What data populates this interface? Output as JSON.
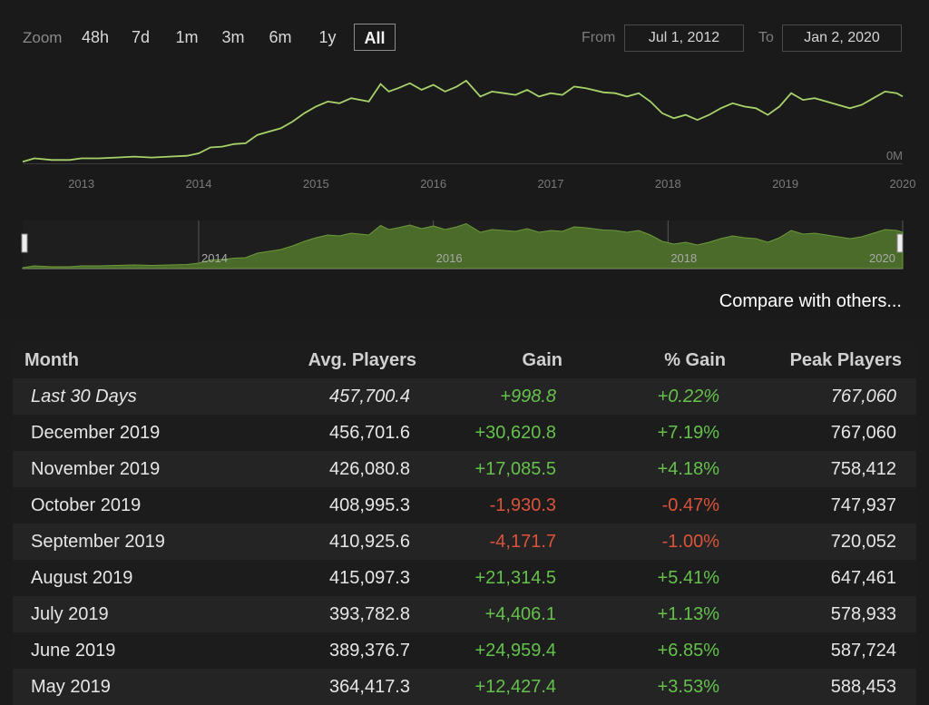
{
  "zoom": {
    "label": "Zoom",
    "options": [
      "48h",
      "7d",
      "1m",
      "3m",
      "6m",
      "1y",
      "All"
    ],
    "active": "All"
  },
  "range": {
    "from_label": "From",
    "from_value": "Jul 1, 2012",
    "to_label": "To",
    "to_value": "Jan 2, 2020"
  },
  "compare_label": "Compare with others...",
  "colors": {
    "line": "#a7d26a",
    "navigator_fill": "#4a6b2a",
    "navigator_line": "#6d9a3a",
    "positive": "#65c14c",
    "negative": "#d9543b"
  },
  "chart_data": {
    "type": "line",
    "y_axis_label": "0M",
    "x_tick_labels": [
      "2013",
      "2014",
      "2015",
      "2016",
      "2017",
      "2018",
      "2019",
      "2020"
    ],
    "navigator_tick_labels": [
      "2014",
      "2016",
      "2018",
      "2020"
    ],
    "xlim": [
      2012.5,
      2020.0
    ],
    "grid": false,
    "series": [
      {
        "values_in": "relative to peak",
        "x": [
          2012.5,
          2012.6,
          2012.75,
          2012.9,
          2013.0,
          2013.15,
          2013.3,
          2013.45,
          2013.6,
          2013.75,
          2013.9,
          2014.0,
          2014.1,
          2014.2,
          2014.3,
          2014.4,
          2014.5,
          2014.6,
          2014.7,
          2014.8,
          2014.9,
          2015.0,
          2015.1,
          2015.2,
          2015.3,
          2015.45,
          2015.55,
          2015.62,
          2015.7,
          2015.8,
          2015.9,
          2016.0,
          2016.1,
          2016.2,
          2016.28,
          2016.4,
          2016.5,
          2016.6,
          2016.7,
          2016.8,
          2016.9,
          2017.0,
          2017.1,
          2017.2,
          2017.3,
          2017.45,
          2017.55,
          2017.65,
          2017.75,
          2017.85,
          2017.95,
          2018.05,
          2018.15,
          2018.25,
          2018.35,
          2018.45,
          2018.55,
          2018.65,
          2018.75,
          2018.85,
          2018.95,
          2019.05,
          2019.15,
          2019.25,
          2019.35,
          2019.45,
          2019.55,
          2019.65,
          2019.75,
          2019.85,
          2019.95,
          2020.0
        ],
        "values": [
          0.02,
          0.06,
          0.04,
          0.04,
          0.06,
          0.06,
          0.07,
          0.08,
          0.07,
          0.08,
          0.09,
          0.12,
          0.19,
          0.2,
          0.23,
          0.24,
          0.34,
          0.38,
          0.42,
          0.5,
          0.6,
          0.68,
          0.74,
          0.72,
          0.78,
          0.74,
          0.95,
          0.86,
          0.9,
          0.96,
          0.88,
          0.94,
          0.86,
          0.92,
          0.99,
          0.8,
          0.86,
          0.84,
          0.82,
          0.88,
          0.8,
          0.84,
          0.82,
          0.92,
          0.9,
          0.85,
          0.84,
          0.8,
          0.84,
          0.74,
          0.6,
          0.54,
          0.58,
          0.52,
          0.58,
          0.66,
          0.72,
          0.68,
          0.66,
          0.58,
          0.68,
          0.84,
          0.76,
          0.78,
          0.74,
          0.7,
          0.66,
          0.7,
          0.78,
          0.86,
          0.84,
          0.8
        ]
      }
    ]
  },
  "table": {
    "headers": {
      "month": "Month",
      "avg": "Avg. Players",
      "gain": "Gain",
      "pgain": "% Gain",
      "peak": "Peak Players"
    },
    "rows": [
      {
        "month": "Last 30 Days",
        "avg": "457,700.4",
        "gain": "+998.8",
        "pgain": "+0.22%",
        "peak": "767,060",
        "trend": "pos",
        "italic": true
      },
      {
        "month": "December 2019",
        "avg": "456,701.6",
        "gain": "+30,620.8",
        "pgain": "+7.19%",
        "peak": "767,060",
        "trend": "pos"
      },
      {
        "month": "November 2019",
        "avg": "426,080.8",
        "gain": "+17,085.5",
        "pgain": "+4.18%",
        "peak": "758,412",
        "trend": "pos"
      },
      {
        "month": "October 2019",
        "avg": "408,995.3",
        "gain": "-1,930.3",
        "pgain": "-0.47%",
        "peak": "747,937",
        "trend": "neg"
      },
      {
        "month": "September 2019",
        "avg": "410,925.6",
        "gain": "-4,171.7",
        "pgain": "-1.00%",
        "peak": "720,052",
        "trend": "neg"
      },
      {
        "month": "August 2019",
        "avg": "415,097.3",
        "gain": "+21,314.5",
        "pgain": "+5.41%",
        "peak": "647,461",
        "trend": "pos"
      },
      {
        "month": "July 2019",
        "avg": "393,782.8",
        "gain": "+4,406.1",
        "pgain": "+1.13%",
        "peak": "578,933",
        "trend": "pos"
      },
      {
        "month": "June 2019",
        "avg": "389,376.7",
        "gain": "+24,959.4",
        "pgain": "+6.85%",
        "peak": "587,724",
        "trend": "pos"
      },
      {
        "month": "May 2019",
        "avg": "364,417.3",
        "gain": "+12,427.4",
        "pgain": "+3.53%",
        "peak": "588,453",
        "trend": "pos"
      }
    ]
  }
}
